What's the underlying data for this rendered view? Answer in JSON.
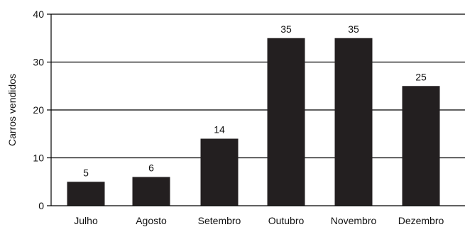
{
  "chart_data": {
    "type": "bar",
    "categories": [
      "Julho",
      "Agosto",
      "Setembro",
      "Outubro",
      "Novembro",
      "Dezembro"
    ],
    "values": [
      5,
      6,
      14,
      35,
      35,
      25
    ],
    "data_labels": [
      "5",
      "6",
      "14",
      "35",
      "35",
      "25"
    ],
    "title": "",
    "xlabel": "",
    "ylabel": "Carros vendidos",
    "ylim": [
      0,
      40
    ],
    "yticks": [
      0,
      10,
      20,
      30,
      40
    ],
    "ytick_labels": [
      "0",
      "10",
      "20",
      "30",
      "40"
    ],
    "grid": "horizontal",
    "legend": "none",
    "bar_color": "#231f20",
    "grid_color": "#000000"
  }
}
